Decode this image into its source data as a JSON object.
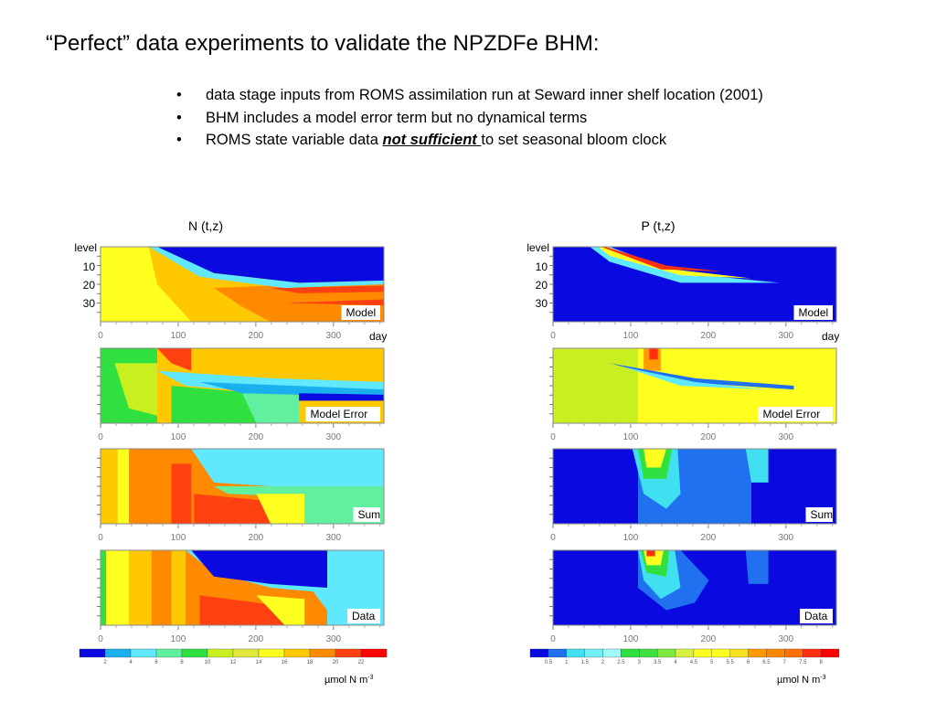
{
  "slide": {
    "title": "“Perfect” data experiments to validate the NPZDFe BHM:",
    "bullets": [
      {
        "bullet": "•",
        "text": "data stage inputs from ROMS assimilation run at Seward inner shelf location (2001)"
      },
      {
        "bullet": "•",
        "text": "BHM includes a model error term but no dynamical terms"
      },
      {
        "bullet": "•",
        "text_before": "ROMS state variable data ",
        "text_em": "not sufficient ",
        "text_after": "to set seasonal bloom clock"
      }
    ]
  },
  "chart_data": [
    {
      "type": "heatmap",
      "title": "N (t,z)",
      "xlabel": "day",
      "ylabel": "level",
      "x_ticks": [
        "0",
        "100",
        "200",
        "300"
      ],
      "y_ticks": [
        "10",
        "20",
        "30"
      ],
      "xlim": [
        0,
        365
      ],
      "ylim": [
        40,
        1
      ],
      "panels": [
        "Model",
        "Model Error",
        "Sum",
        "Data"
      ],
      "colorbar": {
        "levels": [
          "2",
          "4",
          "6",
          "8",
          "10",
          "12",
          "14",
          "16",
          "18",
          "20",
          "22"
        ],
        "unit": "µmol N m",
        "unit_sup": "-3",
        "colors": [
          "#0a0ae0",
          "#1ab0ee",
          "#60e8ff",
          "#60f0a0",
          "#30e040",
          "#c8f020",
          "#e0e840",
          "#ffff20",
          "#ffc800",
          "#ff8a00",
          "#ff4010",
          "#ff0000"
        ]
      }
    },
    {
      "type": "heatmap",
      "title": "P (t,z)",
      "xlabel": "day",
      "ylabel": "level",
      "x_ticks": [
        "0",
        "100",
        "200",
        "300"
      ],
      "y_ticks": [
        "10",
        "20",
        "30"
      ],
      "xlim": [
        0,
        365
      ],
      "ylim": [
        40,
        1
      ],
      "panels": [
        "Model",
        "Model Error",
        "Sum",
        "Data"
      ],
      "colorbar": {
        "levels": [
          "0.5",
          "1",
          "1.5",
          "2",
          "2.5",
          "3",
          "3.5",
          "4",
          "4.5",
          "5",
          "5.5",
          "6",
          "6.5",
          "7",
          "7.5",
          "8"
        ],
        "unit": "µmol N m",
        "unit_sup": "-3",
        "colors": [
          "#0a0ae0",
          "#2070f0",
          "#40e0f0",
          "#70f0f8",
          "#a0f8f8",
          "#30e040",
          "#40e040",
          "#80e840",
          "#d8f040",
          "#ffff20",
          "#ffff20",
          "#f8e020",
          "#ff9a00",
          "#ff8800",
          "#ff7000",
          "#ff3010",
          "#ff0000"
        ]
      }
    }
  ]
}
